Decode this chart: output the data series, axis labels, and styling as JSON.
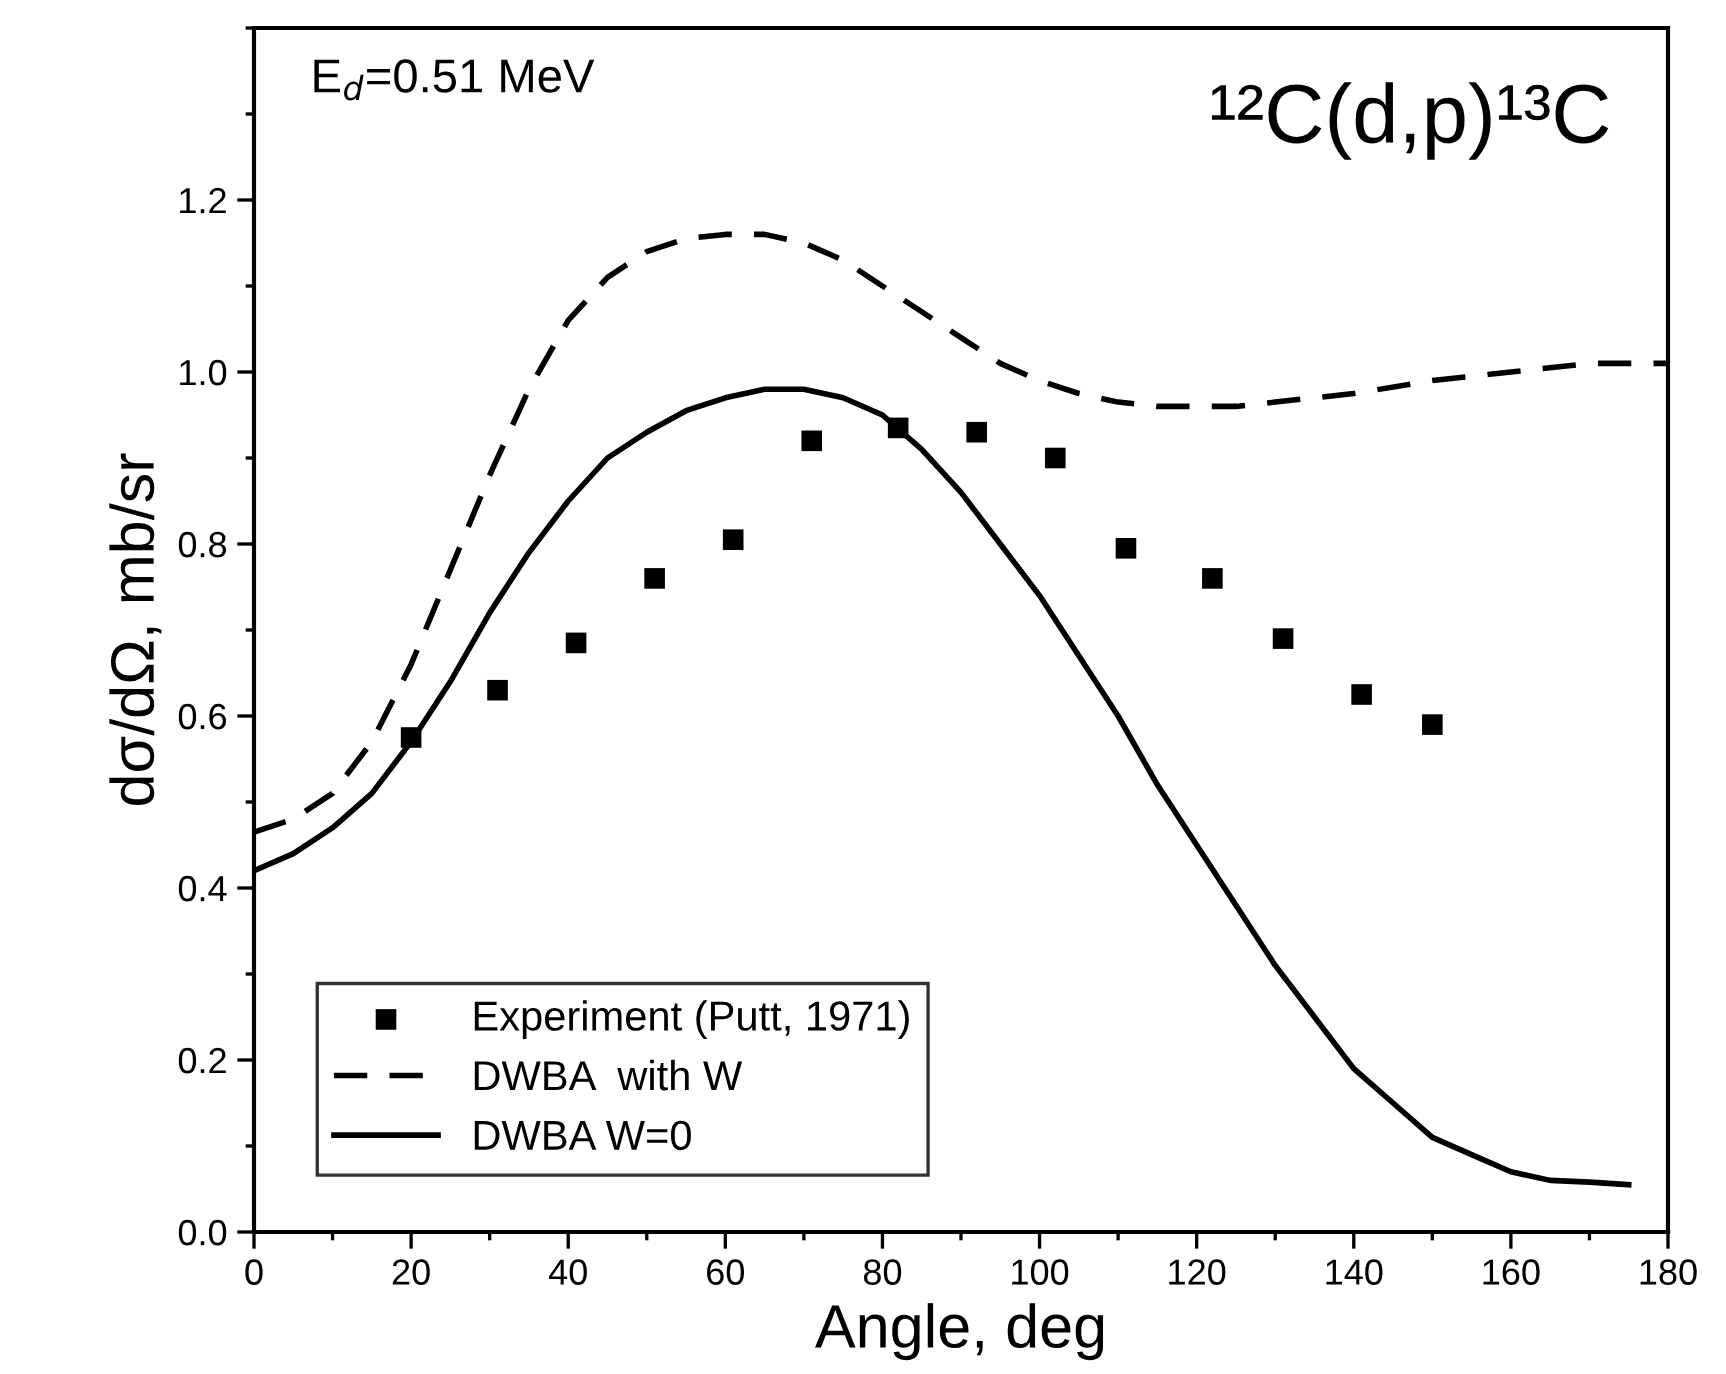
{
  "chart_data": {
    "type": "line",
    "xlabel": "Angle, deg",
    "ylabel": "dσ/dΩ, mb/sr",
    "annotations": [
      "E$_{d}$=0.51 MeV",
      "¹²C(d,p)¹³C"
    ],
    "xlim": [
      0,
      180
    ],
    "xticks": [
      0,
      20,
      40,
      60,
      80,
      100,
      120,
      140,
      160,
      180
    ],
    "ylim": [
      0,
      1.4
    ],
    "yticks": [
      {
        "value": 0,
        "label": "0.0"
      },
      {
        "value": 0.2,
        "label": "0.2"
      },
      {
        "value": 0.4,
        "label": "0.4"
      },
      {
        "value": 0.6,
        "label": "0.6"
      },
      {
        "value": 0.8,
        "label": "0.8"
      },
      {
        "value": 1.0,
        "label": "1.0"
      },
      {
        "value": 1.2,
        "label": "1.2"
      }
    ],
    "grid": false,
    "legend": "bottom left",
    "series": [
      {
        "name": "Experiment (Putt, 1971)",
        "type": "scatter",
        "marker": "square",
        "color": "#000000",
        "x": [
          20,
          31,
          41,
          51,
          61,
          71,
          82,
          92,
          102,
          111,
          122,
          131,
          141,
          150
        ],
        "values": [
          0.575,
          0.63,
          0.685,
          0.76,
          0.805,
          0.92,
          0.935,
          0.93,
          0.9,
          0.795,
          0.76,
          0.69,
          0.625,
          0.59
        ]
      },
      {
        "name": "DWBA  with W",
        "line_style": "dashed",
        "color": "#000000",
        "x": [
          0,
          5,
          10,
          15,
          20,
          25,
          30,
          35,
          40,
          45,
          50,
          55,
          60,
          65,
          70,
          75,
          80,
          85,
          90,
          95,
          100,
          105,
          110,
          115,
          120,
          125,
          130,
          140,
          150,
          160,
          170,
          180
        ],
        "values": [
          0.465,
          0.48,
          0.51,
          0.57,
          0.66,
          0.77,
          0.88,
          0.98,
          1.06,
          1.11,
          1.14,
          1.155,
          1.16,
          1.16,
          1.15,
          1.13,
          1.1,
          1.07,
          1.04,
          1.01,
          0.99,
          0.975,
          0.965,
          0.96,
          0.96,
          0.96,
          0.965,
          0.975,
          0.99,
          1.0,
          1.01,
          1.01
        ]
      },
      {
        "name": "DWBA W=0",
        "line_style": "solid",
        "color": "#000000",
        "x": [
          0,
          5,
          10,
          15,
          20,
          25,
          30,
          35,
          40,
          45,
          50,
          55,
          60,
          65,
          70,
          75,
          80,
          85,
          90,
          95,
          100,
          105,
          110,
          115,
          120,
          125,
          130,
          135,
          140,
          145,
          150,
          155,
          160,
          165,
          170,
          175
        ],
        "values": [
          0.42,
          0.44,
          0.47,
          0.51,
          0.57,
          0.64,
          0.72,
          0.79,
          0.85,
          0.9,
          0.93,
          0.955,
          0.97,
          0.98,
          0.98,
          0.97,
          0.95,
          0.91,
          0.86,
          0.8,
          0.74,
          0.67,
          0.6,
          0.52,
          0.45,
          0.38,
          0.31,
          0.25,
          0.19,
          0.15,
          0.11,
          0.09,
          0.07,
          0.06,
          0.058,
          0.055
        ]
      }
    ]
  }
}
